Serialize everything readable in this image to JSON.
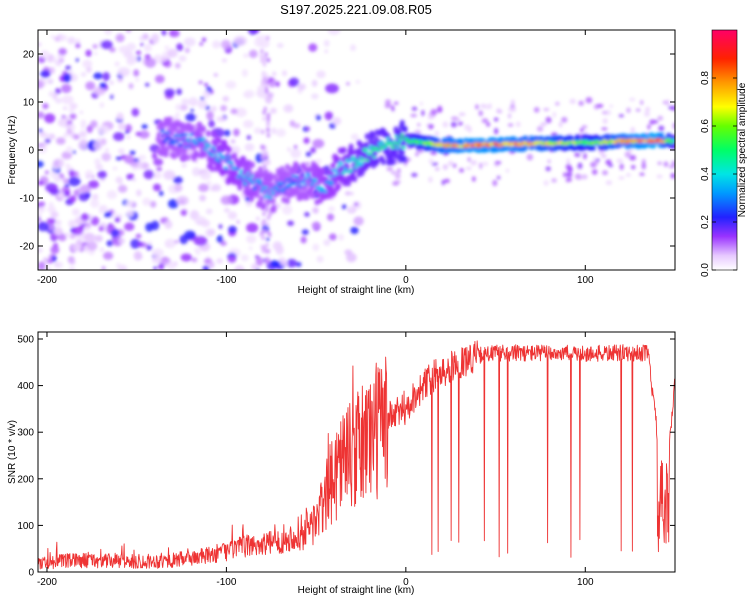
{
  "title": "S197.2025.221.09.08.R05",
  "chart_data": [
    {
      "type": "heatmap",
      "xlabel": "Height of straight line (km)",
      "ylabel": "Frequency (Hz)",
      "xlim": [
        -205,
        150
      ],
      "ylim": [
        -25,
        25
      ],
      "xticks": [
        -200,
        -100,
        0,
        100
      ],
      "xtick_labels": [
        "-200",
        "-100",
        "0",
        "100"
      ],
      "yticks": [
        -20,
        -10,
        0,
        10,
        20
      ],
      "ytick_labels": [
        "-20",
        "-10",
        "0",
        "10",
        "20"
      ],
      "colorbar": {
        "label": "Normalized spectral amplitude",
        "range": [
          0,
          1
        ],
        "ticks": [
          0.0,
          0.2,
          0.4,
          0.6,
          0.8
        ],
        "tick_labels": [
          "0.0",
          "0.2",
          "0.4",
          "0.6",
          "0.8"
        ]
      },
      "ridge": {
        "x": [
          -135,
          -125,
          -115,
          -105,
          -95,
          -85,
          -75,
          -65,
          -55,
          -45,
          -38,
          -30,
          -20,
          -10,
          0,
          10,
          20,
          40,
          60,
          80,
          100,
          120,
          140,
          150
        ],
        "freq": [
          3,
          2,
          2,
          -1,
          -4,
          -7,
          -9,
          -7,
          -6,
          -8,
          -4,
          -3,
          -0.5,
          1,
          2,
          1.5,
          1,
          1,
          1.2,
          1.4,
          1.5,
          1.8,
          2,
          1.8
        ]
      },
      "peak_amplitude": {
        "x": [
          -135,
          -100,
          -80,
          -60,
          -40,
          -30,
          -20,
          -5,
          0,
          10,
          20,
          40,
          60,
          80,
          100,
          120,
          140,
          150
        ],
        "amp": [
          0.3,
          0.4,
          0.35,
          0.32,
          0.4,
          0.45,
          0.5,
          0.5,
          0.55,
          0.6,
          0.8,
          0.9,
          0.85,
          0.75,
          0.6,
          0.8,
          0.95,
          0.5
        ]
      }
    },
    {
      "type": "line",
      "xlabel": "Height of straight line (km)",
      "ylabel": "SNR (10 * v/v)",
      "xlim": [
        -205,
        150
      ],
      "ylim": [
        0,
        515
      ],
      "xticks": [
        -200,
        -100,
        0,
        100
      ],
      "xtick_labels": [
        "-200",
        "-100",
        "0",
        "100"
      ],
      "yticks": [
        0,
        100,
        200,
        300,
        400,
        500
      ],
      "ytick_labels": [
        "0",
        "100",
        "200",
        "300",
        "400",
        "500"
      ],
      "series": [
        {
          "name": "SNR",
          "color": "#ee3333",
          "x": [
            -205,
            -180,
            -150,
            -130,
            -110,
            -100,
            -90,
            -80,
            -70,
            -60,
            -50,
            -45,
            -40,
            -35,
            -30,
            -25,
            -20,
            -15,
            -10,
            -5,
            0,
            5,
            10,
            15,
            20,
            30,
            40,
            50,
            60,
            80,
            100,
            120,
            135,
            140,
            145,
            150
          ],
          "y": [
            20,
            25,
            22,
            25,
            35,
            45,
            55,
            60,
            65,
            80,
            110,
            150,
            210,
            250,
            240,
            270,
            300,
            310,
            330,
            340,
            350,
            380,
            400,
            420,
            430,
            450,
            465,
            470,
            470,
            470,
            468,
            470,
            470,
            300,
            200,
            410
          ]
        }
      ]
    }
  ]
}
